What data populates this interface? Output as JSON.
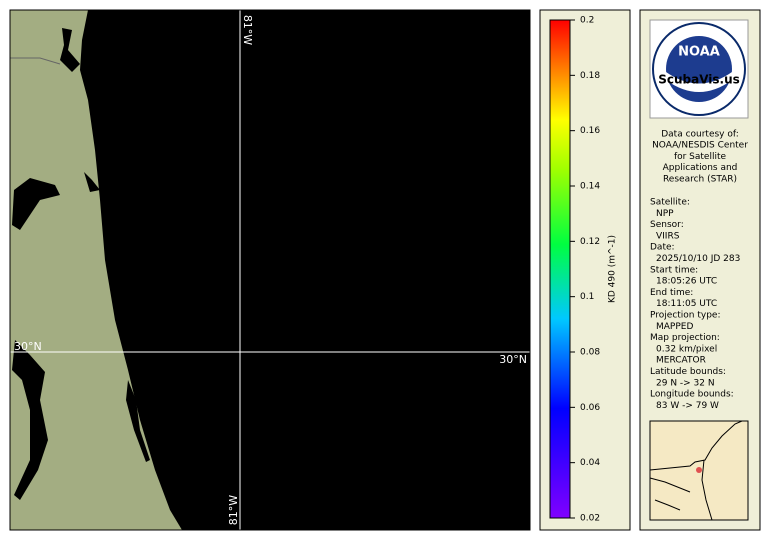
{
  "map": {
    "labels": {
      "lon_top": "81°W",
      "lat_left": "30°N",
      "lat_right": "30°N",
      "lon_bottom": "81°W"
    }
  },
  "colorbar": {
    "label": "KD 490 (m^-1)",
    "range": [
      0.02,
      0.2
    ],
    "ticks": [
      0.02,
      0.04,
      0.06,
      0.08,
      0.1,
      0.12,
      0.14,
      0.16,
      0.18,
      0.2
    ]
  },
  "info": {
    "logo_text": "NOAA",
    "watermark": "ScubaVis.us",
    "courtesy": [
      "Data courtesy of:",
      "NOAA/NESDIS Center",
      "for Satellite",
      "Applications and",
      "Research (STAR)"
    ],
    "fields": [
      {
        "label": "Satellite:",
        "value": "NPP"
      },
      {
        "label": "Sensor:",
        "value": "VIIRS"
      },
      {
        "label": "Date:",
        "value": "2025/10/10 JD 283"
      },
      {
        "label": "Start time:",
        "value": "18:05:26 UTC"
      },
      {
        "label": "End time:",
        "value": "18:11:05 UTC"
      },
      {
        "label": "Projection type:",
        "value": "MAPPED"
      },
      {
        "label": "Map projection:",
        "value": "0.32 km/pixel"
      },
      {
        "label": "",
        "value": "MERCATOR"
      },
      {
        "label": "Latitude bounds:",
        "value": "29 N -> 32 N"
      },
      {
        "label": "Longitude bounds:",
        "value": "83 W -> 79 W"
      }
    ]
  }
}
